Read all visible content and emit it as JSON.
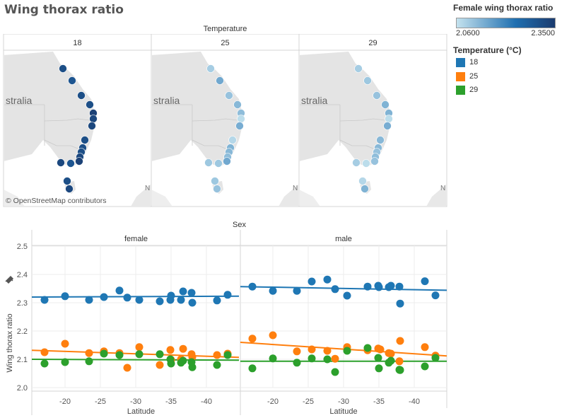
{
  "page_title": "Wing thorax ratio",
  "maps": {
    "column_header": "Temperature",
    "panels": [
      {
        "label": "18",
        "shade": 0.95
      },
      {
        "label": "25",
        "shade": 0.2
      },
      {
        "label": "29",
        "shade": 0.15
      }
    ],
    "country_label": "stralia",
    "edge_label": "N",
    "attribution": "© OpenStreetMap contributors"
  },
  "color_legend": {
    "title": "Female wing thorax ratio",
    "min_label": "2.0600",
    "max_label": "2.3500",
    "min_color": "#c4e2ee",
    "mid_color": "#1f6fb0",
    "max_color": "#1b3b6f"
  },
  "temp_legend": {
    "title": "Temperature (°C)",
    "items": [
      {
        "label": "18",
        "color": "#1f77b4"
      },
      {
        "label": "25",
        "color": "#ff7f0e"
      },
      {
        "label": "29",
        "color": "#2ca02c"
      }
    ]
  },
  "chart_data": {
    "type": "scatter",
    "title": "Wing thorax ratio",
    "column_header": "Sex",
    "ylabel": "Wing thorax ratio",
    "xlabel": "Latitude",
    "ylim": [
      1.97,
      2.55
    ],
    "xlim": [
      -15.3,
      -44.6
    ],
    "yticks": [
      "2.0",
      "2.1",
      "2.2",
      "2.3",
      "2.4",
      "2.5"
    ],
    "ytick_values": [
      2.0,
      2.1,
      2.2,
      2.3,
      2.4,
      2.5
    ],
    "xticks": [
      "-20",
      "-25",
      "-30",
      "-35",
      "-40"
    ],
    "xtick_values": [
      -20,
      -25,
      -30,
      -35,
      -40
    ],
    "grid": true,
    "panels": [
      {
        "label": "female",
        "series": [
          {
            "name": "18",
            "color": "#1f77b4",
            "trend": [
              [
                -15.3,
                2.32
              ],
              [
                -44.6,
                2.323
              ]
            ],
            "points": [
              [
                -17.1,
                2.31
              ],
              [
                -20.0,
                2.323
              ],
              [
                -23.4,
                2.31
              ],
              [
                -25.5,
                2.32
              ],
              [
                -27.7,
                2.343
              ],
              [
                -28.8,
                2.318
              ],
              [
                -30.5,
                2.31
              ],
              [
                -33.4,
                2.305
              ],
              [
                -35.0,
                2.325
              ],
              [
                -34.9,
                2.31
              ],
              [
                -36.4,
                2.31
              ],
              [
                -36.7,
                2.34
              ],
              [
                -37.9,
                2.335
              ],
              [
                -38.0,
                2.3
              ],
              [
                -41.5,
                2.308
              ],
              [
                -43.0,
                2.328
              ]
            ]
          },
          {
            "name": "25",
            "color": "#ff7f0e",
            "trend": [
              [
                -15.3,
                2.132
              ],
              [
                -44.6,
                2.107
              ]
            ],
            "points": [
              [
                -17.1,
                2.125
              ],
              [
                -20.0,
                2.155
              ],
              [
                -23.4,
                2.122
              ],
              [
                -25.5,
                2.128
              ],
              [
                -27.7,
                2.122
              ],
              [
                -28.8,
                2.07
              ],
              [
                -30.5,
                2.143
              ],
              [
                -33.4,
                2.08
              ],
              [
                -34.9,
                2.133
              ],
              [
                -35.0,
                2.098
              ],
              [
                -36.4,
                2.1
              ],
              [
                -36.7,
                2.137
              ],
              [
                -37.9,
                2.118
              ],
              [
                -38.0,
                2.108
              ],
              [
                -41.5,
                2.115
              ],
              [
                -43.0,
                2.12
              ]
            ]
          },
          {
            "name": "29",
            "color": "#2ca02c",
            "trend": [
              [
                -15.3,
                2.1
              ],
              [
                -44.6,
                2.097
              ]
            ],
            "points": [
              [
                -17.1,
                2.085
              ],
              [
                -20.0,
                2.09
              ],
              [
                -23.4,
                2.093
              ],
              [
                -25.5,
                2.12
              ],
              [
                -27.7,
                2.115
              ],
              [
                -30.5,
                2.118
              ],
              [
                -33.4,
                2.118
              ],
              [
                -34.9,
                2.1
              ],
              [
                -35.0,
                2.085
              ],
              [
                -36.4,
                2.088
              ],
              [
                -36.7,
                2.095
              ],
              [
                -37.9,
                2.09
              ],
              [
                -38.0,
                2.072
              ],
              [
                -41.5,
                2.08
              ],
              [
                -43.0,
                2.115
              ]
            ]
          }
        ]
      },
      {
        "label": "male",
        "series": [
          {
            "name": "18",
            "color": "#1f77b4",
            "trend": [
              [
                -15.4,
                2.357
              ],
              [
                -44.6,
                2.344
              ]
            ],
            "points": [
              [
                -17.1,
                2.357
              ],
              [
                -20.0,
                2.342
              ],
              [
                -23.4,
                2.342
              ],
              [
                -25.5,
                2.375
              ],
              [
                -27.7,
                2.382
              ],
              [
                -28.8,
                2.348
              ],
              [
                -30.5,
                2.325
              ],
              [
                -33.4,
                2.357
              ],
              [
                -35.0,
                2.355
              ],
              [
                -34.9,
                2.36
              ],
              [
                -36.4,
                2.355
              ],
              [
                -36.7,
                2.36
              ],
              [
                -37.9,
                2.357
              ],
              [
                -38.0,
                2.297
              ],
              [
                -41.5,
                2.376
              ],
              [
                -43.0,
                2.326
              ]
            ]
          },
          {
            "name": "25",
            "color": "#ff7f0e",
            "trend": [
              [
                -15.4,
                2.16
              ],
              [
                -44.6,
                2.112
              ]
            ],
            "points": [
              [
                -17.1,
                2.173
              ],
              [
                -20.0,
                2.185
              ],
              [
                -23.4,
                2.128
              ],
              [
                -25.5,
                2.135
              ],
              [
                -27.7,
                2.13
              ],
              [
                -28.8,
                2.102
              ],
              [
                -30.5,
                2.143
              ],
              [
                -33.4,
                2.132
              ],
              [
                -34.9,
                2.138
              ],
              [
                -35.2,
                2.135
              ],
              [
                -36.4,
                2.122
              ],
              [
                -36.7,
                2.12
              ],
              [
                -37.9,
                2.093
              ],
              [
                -38.0,
                2.165
              ],
              [
                -41.5,
                2.143
              ],
              [
                -43.0,
                2.113
              ]
            ]
          },
          {
            "name": "29",
            "color": "#2ca02c",
            "trend": [
              [
                -15.4,
                2.093
              ],
              [
                -44.6,
                2.093
              ]
            ],
            "points": [
              [
                -17.1,
                2.068
              ],
              [
                -20.0,
                2.103
              ],
              [
                -23.4,
                2.088
              ],
              [
                -25.5,
                2.103
              ],
              [
                -27.7,
                2.1
              ],
              [
                -28.8,
                2.055
              ],
              [
                -30.5,
                2.13
              ],
              [
                -33.4,
                2.14
              ],
              [
                -34.9,
                2.105
              ],
              [
                -35.0,
                2.068
              ],
              [
                -36.4,
                2.088
              ],
              [
                -36.7,
                2.095
              ],
              [
                -37.9,
                2.063
              ],
              [
                -38.0,
                2.062
              ],
              [
                -41.5,
                2.075
              ],
              [
                -43.0,
                2.105
              ]
            ]
          }
        ]
      }
    ]
  },
  "map_sites": [
    [
      89,
      97
    ],
    [
      102,
      114
    ],
    [
      115,
      135
    ],
    [
      127,
      148
    ],
    [
      132,
      160
    ],
    [
      132,
      168
    ],
    [
      130,
      178
    ],
    [
      120,
      198
    ],
    [
      117,
      209
    ],
    [
      115,
      215
    ],
    [
      113,
      222
    ],
    [
      112,
      228
    ],
    [
      86,
      230
    ],
    [
      100,
      231
    ],
    [
      95,
      256
    ],
    [
      98,
      267
    ]
  ],
  "map_site_shades": [
    [
      0.85,
      0.9,
      0.2,
      0.2
    ],
    [
      0.8,
      0.9,
      0.55,
      0.25
    ],
    [
      0.85,
      0.85,
      0.3,
      0.3
    ],
    [
      0.85,
      0.9,
      0.4,
      0.45
    ],
    [
      0.95,
      0.95,
      0.35,
      0.45
    ],
    [
      0.9,
      0.9,
      0.05,
      0.05
    ],
    [
      0.9,
      0.9,
      0.5,
      0.5
    ],
    [
      0.85,
      0.85,
      0.1,
      0.4
    ],
    [
      0.85,
      0.85,
      0.45,
      0.4
    ],
    [
      0.85,
      0.85,
      0.4,
      0.3
    ],
    [
      0.9,
      0.9,
      0.35,
      0.35
    ],
    [
      0.95,
      0.95,
      0.55,
      0.3
    ],
    [
      0.9,
      0.9,
      0.25,
      0.2
    ],
    [
      0.8,
      0.8,
      0.25,
      0.05
    ],
    [
      0.85,
      0.85,
      0.25,
      0.1
    ],
    [
      0.9,
      0.9,
      0.3,
      0.45
    ]
  ]
}
